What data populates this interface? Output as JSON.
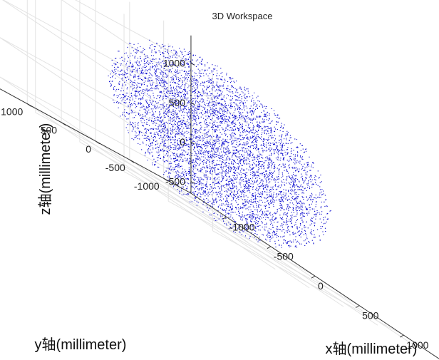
{
  "chart_data": {
    "type": "scatter",
    "title": "3D Workspace",
    "xlabel": "x轴(millimeter)",
    "ylabel": "y轴(millimeter)",
    "zlabel": "z轴(millimeter)",
    "x_ticks": [
      "-1000",
      "-500",
      "0",
      "500",
      "1000"
    ],
    "y_ticks": [
      "-1000",
      "-500",
      "0",
      "500",
      "1000"
    ],
    "z_ticks": [
      "-500",
      "0",
      "500",
      "1000"
    ],
    "xlim": [
      -1400,
      1400
    ],
    "ylim": [
      -1400,
      1400
    ],
    "zlim": [
      -650,
      1350
    ],
    "grid": true,
    "marker_color": "#0000cc",
    "point_cloud": {
      "shape": "sphere",
      "center": [
        0,
        0,
        350
      ],
      "radius": 1000,
      "point_count": 6000
    }
  }
}
